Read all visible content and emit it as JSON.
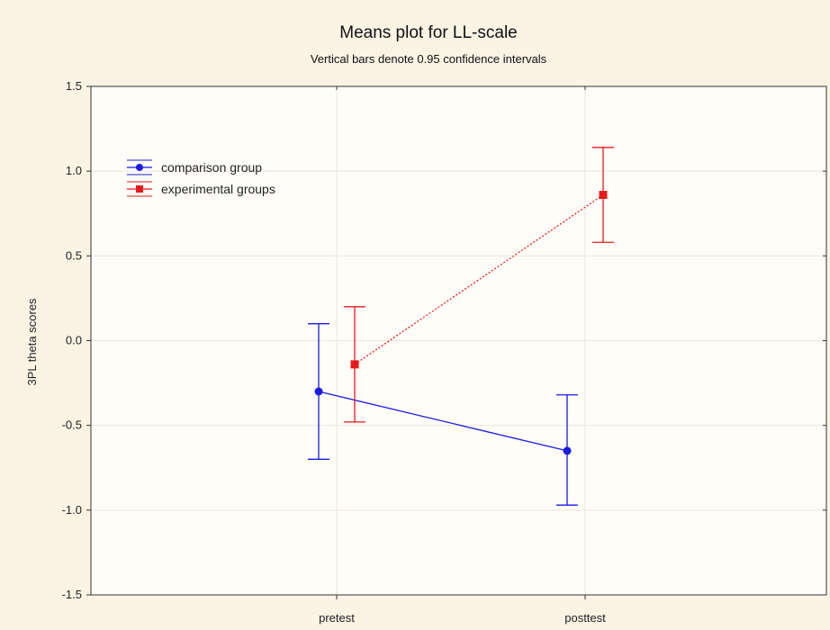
{
  "chart_data": {
    "type": "line",
    "title": "Means plot for LL-scale",
    "subtitle": "Vertical bars denote 0.95 confidence intervals",
    "xlabel": "",
    "ylabel": "3PL theta scores",
    "categories": [
      "pretest",
      "posttest"
    ],
    "ylim": [
      -1.5,
      1.5
    ],
    "yticks": [
      1.5,
      1.0,
      0.5,
      0.0,
      -0.5,
      -1.0,
      -1.5
    ],
    "ytick_labels": [
      "1.5",
      "1.0",
      "0.5",
      "0.0",
      "-0.5",
      "-1.0",
      "-1.5"
    ],
    "grid": true,
    "legend_position": "top-left",
    "series": [
      {
        "name": "comparison group",
        "color": "#1a1ae6",
        "marker": "circle",
        "line_style": "solid",
        "values": [
          -0.3,
          -0.65
        ],
        "ci_lower": [
          -0.7,
          -0.97
        ],
        "ci_upper": [
          0.1,
          -0.32
        ]
      },
      {
        "name": "experimental groups",
        "color": "#e61a1a",
        "marker": "square",
        "line_style": "dotted",
        "values": [
          -0.14,
          0.86
        ],
        "ci_lower": [
          -0.48,
          0.58
        ],
        "ci_upper": [
          0.2,
          1.14
        ]
      }
    ]
  }
}
